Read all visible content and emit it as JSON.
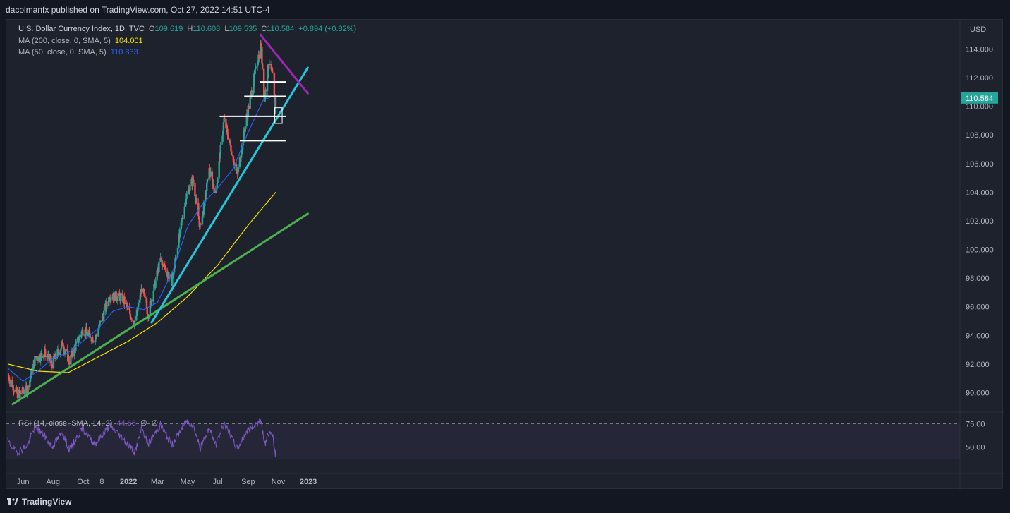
{
  "header": {
    "published": "dacolmanfx published on TradingView.com, Oct 27, 2022 14:51 UTC-4"
  },
  "legend": {
    "symbol": "U.S. Dollar Currency Index, 1D, TVC",
    "o_label": "O",
    "o_value": "109.619",
    "h_label": "H",
    "h_value": "110.608",
    "l_label": "L",
    "l_value": "109.535",
    "c_label": "C",
    "c_value": "110.584",
    "change": "+0.894 (+0.82%)",
    "ma200_label": "MA (200, close, 0, SMA, 5)",
    "ma200_value": "104.001",
    "ma50_label": "MA (50, close, 0, SMA, 5)",
    "ma50_value": "110.833",
    "rsi_label": "RSI (14, close, SMA, 14, 2)",
    "rsi_value": "44.66",
    "rsi_extra1": "∅",
    "rsi_extra2": "∅"
  },
  "footer": {
    "brand": "TradingView"
  },
  "colors": {
    "up": "#26a69a",
    "down": "#ef5350",
    "ma200": "#f7e600",
    "ma50": "#2962ff",
    "rsi": "#7e57c2",
    "trend_green": "#4caf50",
    "trend_cyan": "#26c6da",
    "trend_purple": "#9c27b0",
    "price_label": "#26a69a"
  },
  "chart_data": {
    "type": "candlestick",
    "title": "U.S. Dollar Currency Index, 1D, TVC",
    "ylabel": "USD",
    "ylim": [
      89.0,
      115.2
    ],
    "y_ticks": [
      "114.000",
      "112.000",
      "110.000",
      "108.000",
      "106.000",
      "104.000",
      "102.000",
      "100.000",
      "98.000",
      "96.000",
      "94.000",
      "92.000",
      "90.000"
    ],
    "x_ticks": [
      "Jun",
      "Aug",
      "Oct",
      "8",
      "2022",
      "Mar",
      "May",
      "Jul",
      "Sep",
      "Nov",
      "2023"
    ],
    "last_price": "110.584",
    "price_anchors": [
      [
        "2021-05-01",
        91.2
      ],
      [
        "2021-05-20",
        89.9
      ],
      [
        "2021-06-10",
        90.2
      ],
      [
        "2021-06-25",
        92.3
      ],
      [
        "2021-07-15",
        92.8
      ],
      [
        "2021-07-30",
        92.0
      ],
      [
        "2021-08-20",
        93.4
      ],
      [
        "2021-09-03",
        92.2
      ],
      [
        "2021-09-30",
        94.4
      ],
      [
        "2021-10-25",
        93.7
      ],
      [
        "2021-11-24",
        96.8
      ],
      [
        "2021-12-20",
        96.6
      ],
      [
        "2022-01-14",
        94.8
      ],
      [
        "2022-01-28",
        97.3
      ],
      [
        "2022-02-10",
        95.5
      ],
      [
        "2022-03-07",
        99.3
      ],
      [
        "2022-03-30",
        97.8
      ],
      [
        "2022-04-28",
        103.7
      ],
      [
        "2022-05-12",
        104.9
      ],
      [
        "2022-05-27",
        101.4
      ],
      [
        "2022-06-14",
        105.5
      ],
      [
        "2022-06-27",
        103.9
      ],
      [
        "2022-07-14",
        109.1
      ],
      [
        "2022-08-10",
        105.2
      ],
      [
        "2022-08-29",
        109.3
      ],
      [
        "2022-09-27",
        114.4
      ],
      [
        "2022-10-04",
        110.4
      ],
      [
        "2022-10-13",
        113.2
      ],
      [
        "2022-10-21",
        112.0
      ],
      [
        "2022-10-26",
        109.7
      ],
      [
        "2022-10-27",
        110.58
      ]
    ],
    "ma200_anchors": [
      [
        "2021-05-01",
        92.0
      ],
      [
        "2021-07-01",
        91.5
      ],
      [
        "2021-09-01",
        91.4
      ],
      [
        "2021-11-01",
        92.5
      ],
      [
        "2022-01-01",
        93.6
      ],
      [
        "2022-03-01",
        94.9
      ],
      [
        "2022-05-01",
        96.7
      ],
      [
        "2022-07-01",
        98.9
      ],
      [
        "2022-09-01",
        101.7
      ],
      [
        "2022-10-27",
        104.0
      ]
    ],
    "ma50_anchors": [
      [
        "2021-05-01",
        91.7
      ],
      [
        "2021-06-01",
        90.8
      ],
      [
        "2021-07-01",
        91.5
      ],
      [
        "2021-08-01",
        92.4
      ],
      [
        "2021-09-01",
        92.8
      ],
      [
        "2021-10-01",
        93.6
      ],
      [
        "2021-11-01",
        94.5
      ],
      [
        "2021-12-01",
        95.7
      ],
      [
        "2022-01-01",
        96.0
      ],
      [
        "2022-02-01",
        95.8
      ],
      [
        "2022-03-01",
        96.3
      ],
      [
        "2022-04-01",
        98.5
      ],
      [
        "2022-05-01",
        101.6
      ],
      [
        "2022-06-01",
        103.2
      ],
      [
        "2022-07-01",
        104.3
      ],
      [
        "2022-08-01",
        105.6
      ],
      [
        "2022-09-01",
        108.2
      ],
      [
        "2022-10-01",
        110.4
      ],
      [
        "2022-10-27",
        110.8
      ]
    ],
    "rsi_anchors": [
      [
        "2021-05-01",
        56
      ],
      [
        "2021-05-20",
        44
      ],
      [
        "2021-06-10",
        52
      ],
      [
        "2021-06-25",
        72
      ],
      [
        "2021-07-15",
        62
      ],
      [
        "2021-07-30",
        50
      ],
      [
        "2021-08-20",
        66
      ],
      [
        "2021-09-03",
        47
      ],
      [
        "2021-09-30",
        70
      ],
      [
        "2021-10-25",
        53
      ],
      [
        "2021-11-24",
        73
      ],
      [
        "2021-12-20",
        60
      ],
      [
        "2022-01-14",
        44
      ],
      [
        "2022-01-28",
        70
      ],
      [
        "2022-02-10",
        53
      ],
      [
        "2022-03-07",
        74
      ],
      [
        "2022-03-30",
        52
      ],
      [
        "2022-04-28",
        78
      ],
      [
        "2022-05-12",
        74
      ],
      [
        "2022-05-27",
        49
      ],
      [
        "2022-06-14",
        70
      ],
      [
        "2022-06-27",
        52
      ],
      [
        "2022-07-14",
        76
      ],
      [
        "2022-08-10",
        48
      ],
      [
        "2022-08-29",
        67
      ],
      [
        "2022-09-27",
        79
      ],
      [
        "2022-10-04",
        52
      ],
      [
        "2022-10-13",
        66
      ],
      [
        "2022-10-21",
        60
      ],
      [
        "2022-10-26",
        43
      ],
      [
        "2022-10-27",
        44.66
      ]
    ],
    "rsi_ticks": [
      "75.00",
      "50.00"
    ],
    "horizontal_levels": [
      {
        "value": 111.7,
        "from": "2022-09-25",
        "to": "2022-11-17"
      },
      {
        "value": 110.7,
        "from": "2022-08-24",
        "to": "2022-11-17"
      },
      {
        "value": 109.3,
        "from": "2022-07-05",
        "to": "2022-11-17"
      },
      {
        "value": 107.6,
        "from": "2022-08-15",
        "to": "2022-11-17"
      }
    ],
    "trendlines": [
      {
        "name": "green",
        "from": [
          "2021-05-11",
          89.2
        ],
        "to": [
          "2022-12-31",
          102.5
        ]
      },
      {
        "name": "cyan",
        "from": [
          "2022-02-17",
          94.9
        ],
        "to": [
          "2022-12-31",
          112.7
        ]
      },
      {
        "name": "purple",
        "from": [
          "2022-09-26",
          115.0
        ],
        "to": [
          "2022-12-31",
          110.9
        ]
      }
    ],
    "box": {
      "from": "2022-10-25",
      "to": "2022-11-09",
      "top": 109.9,
      "bottom": 108.8
    }
  }
}
